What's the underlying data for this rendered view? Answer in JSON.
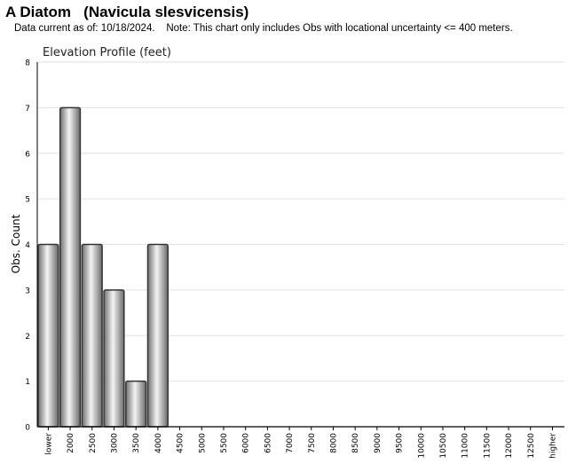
{
  "page": {
    "title": "A Diatom   (Navicula slesvicensis)",
    "note": "Data current as of: 10/18/2024.    Note: This chart only includes Obs with locational uncertainty <= 400 meters."
  },
  "chart_data": {
    "type": "bar",
    "title": "Elevation Profile (feet)",
    "xlabel": "",
    "ylabel": "Obs. Count",
    "ylim": [
      0,
      8
    ],
    "yticks": [
      0,
      1,
      2,
      3,
      4,
      5,
      6,
      7,
      8
    ],
    "grid": true,
    "categories": [
      "lower",
      "2000",
      "2500",
      "3000",
      "3500",
      "4000",
      "4500",
      "5000",
      "5500",
      "6000",
      "6500",
      "7000",
      "7500",
      "8000",
      "8500",
      "9000",
      "9500",
      "10000",
      "10500",
      "11000",
      "11500",
      "12000",
      "12500",
      "higher"
    ],
    "values": [
      4,
      7,
      4,
      3,
      1,
      4,
      0,
      0,
      0,
      0,
      0,
      0,
      0,
      0,
      0,
      0,
      0,
      0,
      0,
      0,
      0,
      0,
      0,
      0
    ],
    "colors": {
      "bar_dark": "#707070",
      "bar_light": "#f4f4f4",
      "bar_stroke": "#333333",
      "grid": "#e2e2e2",
      "axis": "#000000"
    }
  }
}
